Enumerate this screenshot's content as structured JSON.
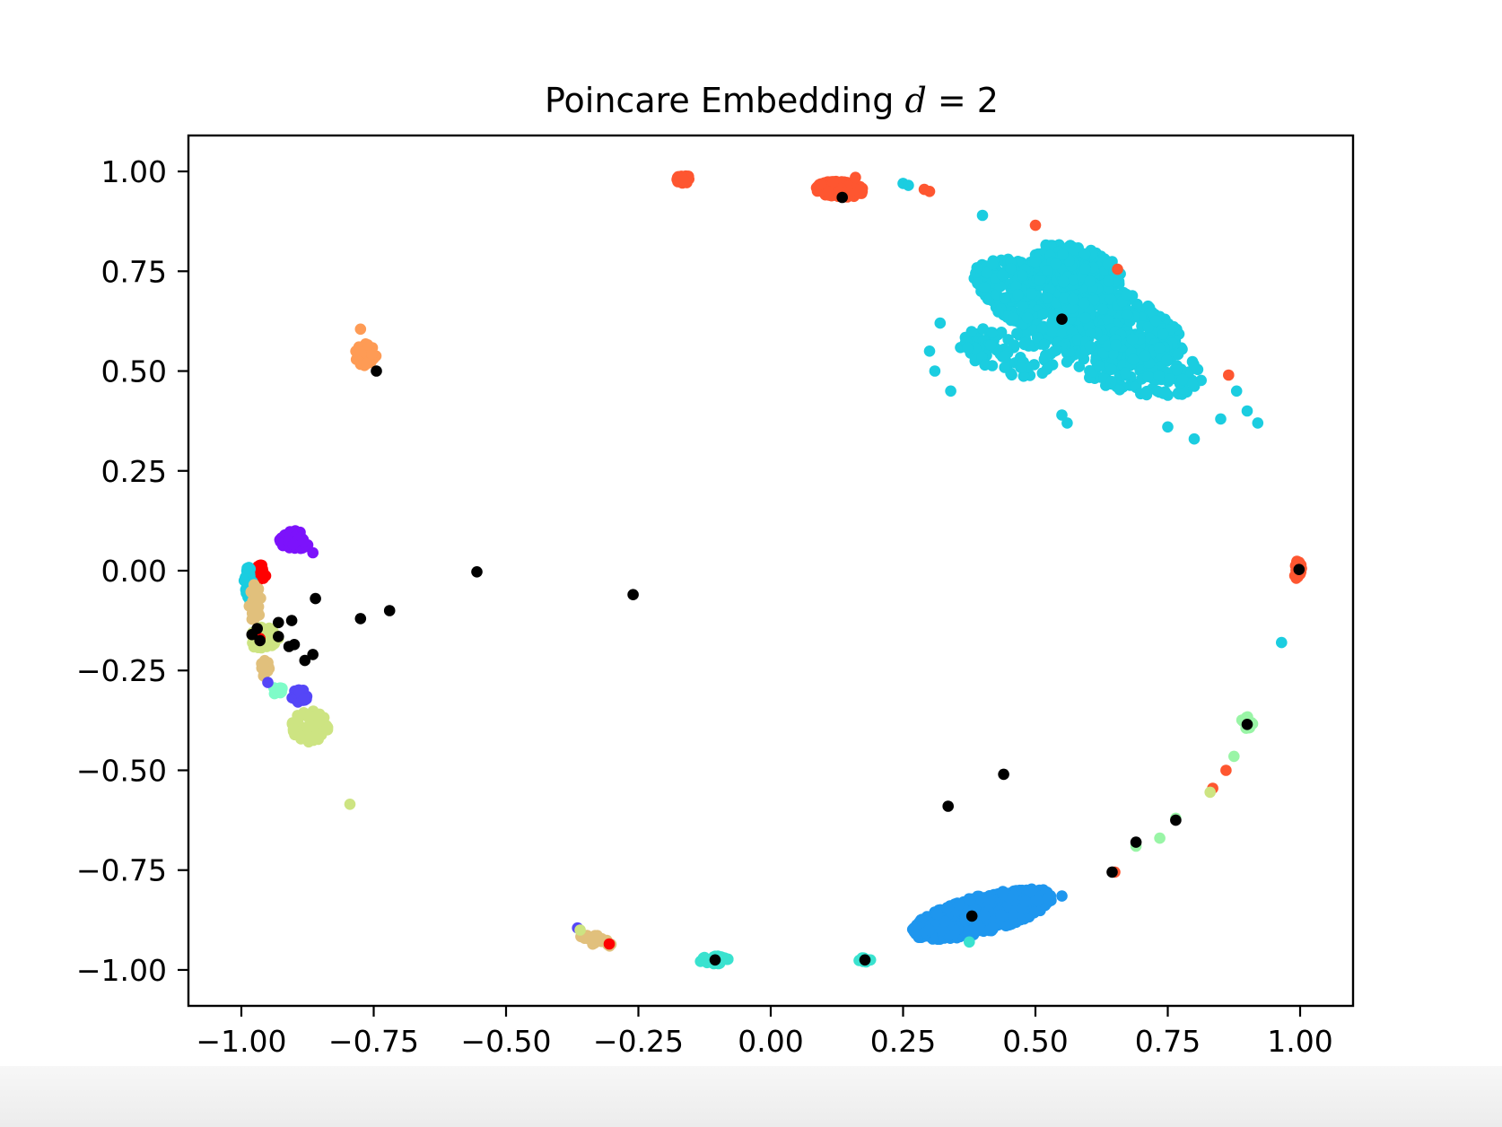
{
  "chart_data": {
    "type": "scatter",
    "title": "Poincare Embedding d = 2",
    "title_parts": {
      "prefix": "Poincare Embedding ",
      "var": "d",
      "eq": " = 2"
    },
    "xlabel": "",
    "ylabel": "",
    "xlim": [
      -1.1,
      1.1
    ],
    "ylim": [
      -1.09,
      1.09
    ],
    "xticks": [
      -1.0,
      -0.75,
      -0.5,
      -0.25,
      0.0,
      0.25,
      0.5,
      0.75,
      1.0
    ],
    "yticks": [
      1.0,
      0.75,
      0.5,
      0.25,
      0.0,
      -0.25,
      -0.5,
      -0.75,
      -1.0
    ],
    "xtick_labels": [
      "−1.00",
      "−0.75",
      "−0.50",
      "−0.25",
      "0.00",
      "0.25",
      "0.50",
      "0.75",
      "1.00"
    ],
    "ytick_labels": [
      "1.00",
      "0.75",
      "0.50",
      "0.25",
      "0.00",
      "−0.25",
      "−0.50",
      "−0.75",
      "−1.00"
    ],
    "grid": false,
    "legend": "none",
    "colors": {
      "cyan": "#1bcde0",
      "blue": "#1e96ee",
      "red_orange": "#fe5630",
      "red": "#ff0000",
      "orange": "#fe9b55",
      "purple": "#7c12fb",
      "indigo": "#5546f7",
      "lime": "#cde482",
      "sand": "#e1c07c",
      "teal": "#39e2cf",
      "green": "#99f5a6",
      "aqua": "#7ffcc8",
      "black": "#000000"
    },
    "clusters": [
      {
        "color": "cyan",
        "type": "ellipse",
        "cx": 0.58,
        "cy": 0.65,
        "rx": 0.22,
        "ry": 0.09,
        "angle": -28,
        "n": 700,
        "seed": 11
      },
      {
        "color": "cyan",
        "type": "ellipse",
        "cx": 0.58,
        "cy": 0.76,
        "rx": 0.09,
        "ry": 0.05,
        "angle": -25,
        "n": 220,
        "seed": 12
      },
      {
        "color": "cyan",
        "type": "ellipse",
        "cx": 0.68,
        "cy": 0.52,
        "rx": 0.15,
        "ry": 0.07,
        "angle": -20,
        "n": 180,
        "seed": 13
      },
      {
        "color": "cyan",
        "type": "ellipse",
        "cx": 0.45,
        "cy": 0.55,
        "rx": 0.1,
        "ry": 0.06,
        "angle": -20,
        "n": 90,
        "seed": 14
      },
      {
        "color": "blue",
        "type": "ellipse",
        "cx": 0.4,
        "cy": -0.86,
        "rx": 0.14,
        "ry": 0.045,
        "angle": 20,
        "n": 700,
        "seed": 21
      },
      {
        "color": "red_orange",
        "type": "ellipse",
        "cx": 0.13,
        "cy": 0.955,
        "rx": 0.045,
        "ry": 0.02,
        "angle": -5,
        "n": 160,
        "seed": 31
      },
      {
        "color": "red_orange",
        "type": "ellipse",
        "cx": -0.165,
        "cy": 0.98,
        "rx": 0.015,
        "ry": 0.01,
        "angle": 0,
        "n": 30,
        "seed": 32
      },
      {
        "color": "orange",
        "type": "ellipse",
        "cx": -0.765,
        "cy": 0.54,
        "rx": 0.02,
        "ry": 0.028,
        "angle": 0,
        "n": 40,
        "seed": 41
      },
      {
        "color": "purple",
        "type": "ellipse",
        "cx": -0.9,
        "cy": 0.075,
        "rx": 0.03,
        "ry": 0.025,
        "angle": -30,
        "n": 50,
        "seed": 51
      },
      {
        "color": "red",
        "type": "ellipse",
        "cx": -0.965,
        "cy": -0.005,
        "rx": 0.012,
        "ry": 0.02,
        "angle": 0,
        "n": 25,
        "seed": 61
      },
      {
        "color": "red_orange",
        "type": "ellipse",
        "cx": 0.995,
        "cy": 0.002,
        "rx": 0.008,
        "ry": 0.022,
        "angle": 0,
        "n": 30,
        "seed": 62
      },
      {
        "color": "cyan",
        "type": "ellipse",
        "cx": -0.985,
        "cy": -0.03,
        "rx": 0.01,
        "ry": 0.045,
        "angle": 0,
        "n": 30,
        "seed": 71
      },
      {
        "color": "sand",
        "type": "ellipse",
        "cx": -0.975,
        "cy": -0.08,
        "rx": 0.012,
        "ry": 0.05,
        "angle": 0,
        "n": 30,
        "seed": 72
      },
      {
        "color": "lime",
        "type": "ellipse",
        "cx": -0.96,
        "cy": -0.17,
        "rx": 0.03,
        "ry": 0.03,
        "angle": 0,
        "n": 40,
        "seed": 73
      },
      {
        "color": "sand",
        "type": "ellipse",
        "cx": -0.955,
        "cy": -0.245,
        "rx": 0.01,
        "ry": 0.02,
        "angle": 0,
        "n": 15,
        "seed": 74
      },
      {
        "color": "aqua",
        "type": "ellipse",
        "cx": -0.93,
        "cy": -0.3,
        "rx": 0.015,
        "ry": 0.01,
        "angle": 0,
        "n": 15,
        "seed": 75
      },
      {
        "color": "indigo",
        "type": "ellipse",
        "cx": -0.89,
        "cy": -0.315,
        "rx": 0.015,
        "ry": 0.018,
        "angle": 0,
        "n": 25,
        "seed": 76
      },
      {
        "color": "lime",
        "type": "ellipse",
        "cx": -0.87,
        "cy": -0.39,
        "rx": 0.035,
        "ry": 0.04,
        "angle": 0,
        "n": 70,
        "seed": 77
      },
      {
        "color": "sand",
        "type": "ellipse",
        "cx": -0.33,
        "cy": -0.925,
        "rx": 0.035,
        "ry": 0.012,
        "angle": -20,
        "n": 25,
        "seed": 81
      },
      {
        "color": "teal",
        "type": "ellipse",
        "cx": -0.105,
        "cy": -0.975,
        "rx": 0.03,
        "ry": 0.01,
        "angle": 0,
        "n": 40,
        "seed": 91
      },
      {
        "color": "teal",
        "type": "ellipse",
        "cx": 0.177,
        "cy": -0.975,
        "rx": 0.012,
        "ry": 0.006,
        "angle": 0,
        "n": 10,
        "seed": 92
      },
      {
        "color": "green",
        "type": "ellipse",
        "cx": 0.9,
        "cy": -0.38,
        "rx": 0.012,
        "ry": 0.015,
        "angle": 0,
        "n": 18,
        "seed": 93
      }
    ],
    "points": [
      {
        "color": "red_orange",
        "x": 0.16,
        "y": 0.985
      },
      {
        "color": "red_orange",
        "x": 0.29,
        "y": 0.955
      },
      {
        "color": "red_orange",
        "x": 0.3,
        "y": 0.95
      },
      {
        "color": "cyan",
        "x": 0.25,
        "y": 0.97
      },
      {
        "color": "cyan",
        "x": 0.26,
        "y": 0.965
      },
      {
        "color": "red_orange",
        "x": 0.5,
        "y": 0.865
      },
      {
        "color": "red_orange",
        "x": 0.655,
        "y": 0.755
      },
      {
        "color": "red_orange",
        "x": 0.865,
        "y": 0.49
      },
      {
        "color": "cyan",
        "x": 0.92,
        "y": 0.37
      },
      {
        "color": "cyan",
        "x": 0.9,
        "y": 0.4
      },
      {
        "color": "cyan",
        "x": 0.88,
        "y": 0.45
      },
      {
        "color": "cyan",
        "x": 0.85,
        "y": 0.38
      },
      {
        "color": "cyan",
        "x": 0.8,
        "y": 0.33
      },
      {
        "color": "cyan",
        "x": 0.75,
        "y": 0.36
      },
      {
        "color": "cyan",
        "x": 0.55,
        "y": 0.39
      },
      {
        "color": "cyan",
        "x": 0.56,
        "y": 0.37
      },
      {
        "color": "cyan",
        "x": 0.3,
        "y": 0.55
      },
      {
        "color": "cyan",
        "x": 0.31,
        "y": 0.5
      },
      {
        "color": "cyan",
        "x": 0.34,
        "y": 0.45
      },
      {
        "color": "cyan",
        "x": 0.32,
        "y": 0.62
      },
      {
        "color": "cyan",
        "x": 0.4,
        "y": 0.89
      },
      {
        "color": "cyan",
        "x": 0.965,
        "y": -0.18
      },
      {
        "color": "orange",
        "x": -0.775,
        "y": 0.605
      },
      {
        "color": "lime",
        "x": -0.795,
        "y": -0.585
      },
      {
        "color": "green",
        "x": 0.875,
        "y": -0.465
      },
      {
        "color": "red_orange",
        "x": 0.86,
        "y": -0.5
      },
      {
        "color": "red_orange",
        "x": 0.835,
        "y": -0.545
      },
      {
        "color": "lime",
        "x": 0.83,
        "y": -0.555
      },
      {
        "color": "green",
        "x": 0.765,
        "y": -0.62
      },
      {
        "color": "green",
        "x": 0.735,
        "y": -0.67
      },
      {
        "color": "green",
        "x": 0.69,
        "y": -0.69
      },
      {
        "color": "red_orange",
        "x": 0.65,
        "y": -0.755
      },
      {
        "color": "teal",
        "x": 0.375,
        "y": -0.93
      },
      {
        "color": "blue",
        "x": 0.55,
        "y": -0.815
      },
      {
        "color": "indigo",
        "x": -0.365,
        "y": -0.895
      },
      {
        "color": "lime",
        "x": -0.36,
        "y": -0.9
      },
      {
        "color": "red",
        "x": -0.305,
        "y": -0.935
      },
      {
        "color": "red",
        "x": -0.965,
        "y": -0.17
      },
      {
        "color": "indigo",
        "x": -0.95,
        "y": -0.28
      },
      {
        "color": "purple",
        "x": -0.865,
        "y": 0.045
      },
      {
        "color": "black",
        "x": 0.135,
        "y": 0.935
      },
      {
        "color": "black",
        "x": 0.55,
        "y": 0.63
      },
      {
        "color": "black",
        "x": -0.745,
        "y": 0.5
      },
      {
        "color": "black",
        "x": 0.998,
        "y": 0.003
      },
      {
        "color": "black",
        "x": -0.555,
        "y": -0.003
      },
      {
        "color": "black",
        "x": -0.26,
        "y": -0.06
      },
      {
        "color": "black",
        "x": -0.86,
        "y": -0.07
      },
      {
        "color": "black",
        "x": -0.775,
        "y": -0.12
      },
      {
        "color": "black",
        "x": -0.72,
        "y": -0.1
      },
      {
        "color": "black",
        "x": -0.93,
        "y": -0.13
      },
      {
        "color": "black",
        "x": -0.905,
        "y": -0.125
      },
      {
        "color": "black",
        "x": -0.97,
        "y": -0.145
      },
      {
        "color": "black",
        "x": -0.98,
        "y": -0.16
      },
      {
        "color": "black",
        "x": -0.965,
        "y": -0.175
      },
      {
        "color": "black",
        "x": -0.93,
        "y": -0.165
      },
      {
        "color": "black",
        "x": -0.91,
        "y": -0.19
      },
      {
        "color": "black",
        "x": -0.9,
        "y": -0.185
      },
      {
        "color": "black",
        "x": -0.865,
        "y": -0.21
      },
      {
        "color": "black",
        "x": -0.88,
        "y": -0.225
      },
      {
        "color": "black",
        "x": 0.9,
        "y": -0.385
      },
      {
        "color": "black",
        "x": 0.44,
        "y": -0.51
      },
      {
        "color": "black",
        "x": 0.335,
        "y": -0.59
      },
      {
        "color": "black",
        "x": 0.765,
        "y": -0.625
      },
      {
        "color": "black",
        "x": 0.69,
        "y": -0.68
      },
      {
        "color": "black",
        "x": 0.645,
        "y": -0.755
      },
      {
        "color": "black",
        "x": 0.38,
        "y": -0.865
      },
      {
        "color": "black",
        "x": -0.105,
        "y": -0.975
      },
      {
        "color": "black",
        "x": 0.178,
        "y": -0.975
      }
    ]
  }
}
